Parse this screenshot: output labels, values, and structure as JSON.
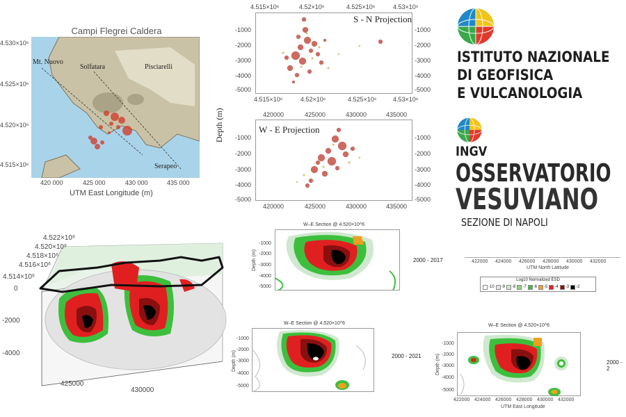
{
  "map": {
    "title": "Campi Flegrei Caldera",
    "xlabel": "UTM East Longitude (m)",
    "xticks": [
      "420 000",
      "425 000",
      "430 000",
      "435 000"
    ],
    "yticks": [
      "4.530×10⁶",
      "4.525×10⁶",
      "4.520×10⁶",
      "4.515×10⁶"
    ],
    "labels": {
      "mt_nuovo": "Mt. Nuovo",
      "solfatara": "Solfatara",
      "pisciarelli": "Pisciarelli",
      "serapeo": "Serapeo"
    }
  },
  "sn": {
    "title": "S - N Projection",
    "xticks": [
      "4.515×10⁶",
      "4.52×10⁶",
      "4.525×10⁶",
      "4.53×10⁶"
    ],
    "yticks": [
      "-1000",
      "-2000",
      "-3000",
      "-4000",
      "-5000"
    ]
  },
  "we": {
    "title": "W - E Projection",
    "xticks": [
      "420000",
      "425000",
      "430000",
      "435000"
    ],
    "yticks": [
      "-1000",
      "-2000",
      "-3000",
      "-4000",
      "-5000"
    ]
  },
  "depth_label": "Depth (m)",
  "logo": {
    "ingv_line1": "ISTITUTO NAZIONALE",
    "ingv_line2": "DI GEOFISICA",
    "ingv_line3": "E VULCANOLOGIA",
    "ov_line1": "INGV",
    "ov_line2": "OSSERVATORIO",
    "ov_line3": "VESUVIANO",
    "ov_line4": "SEZIONE DI NAPOLI"
  },
  "plot3d": {
    "yticks": [
      "4.522×10⁶",
      "4.520×10⁶",
      "4.518×10⁶",
      "4.516×10⁶",
      "4.514×10⁶"
    ],
    "zticks": [
      "0",
      "-2000",
      "-4000"
    ],
    "xticks": [
      "425000",
      "430000"
    ]
  },
  "sections": [
    {
      "title": "W–E Section @ 4.520×10^6",
      "period": "2000 - 2017"
    },
    {
      "title": "W–E Section @ 4.520×10^6",
      "period": "2000 - 2021"
    },
    {
      "title": "W–E Section @ 4.520×10^6",
      "period": "2000 - 2"
    }
  ],
  "section_axes": {
    "ylabel": "Depth (m)",
    "yticks": [
      "-1000",
      "-2000",
      "-3000",
      "-4000",
      "-5000"
    ],
    "xticks": [
      "422000",
      "424000",
      "426000",
      "428000",
      "430000",
      "432000"
    ],
    "xlabel": "UTM East Longitude"
  },
  "legend": {
    "axis_ticks": [
      "422000",
      "424000",
      "426000",
      "428000",
      "430000",
      "432000"
    ],
    "axis_label": "UTM North Latitude",
    "title": "Log10 Normalized ESD",
    "items": [
      {
        "label": "-10",
        "color": "#ffffff"
      },
      {
        "label": "-9",
        "color": "#e6e6e6"
      },
      {
        "label": "-8",
        "color": "#cfe8cf"
      },
      {
        "label": "-7",
        "color": "#8fd37d"
      },
      {
        "label": "-6",
        "color": "#3dbf3d"
      },
      {
        "label": "-5",
        "color": "#f0a020"
      },
      {
        "label": "-4",
        "color": "#e02020"
      },
      {
        "label": "-3",
        "color": "#8a1010"
      },
      {
        "label": "-2",
        "color": "#000000"
      }
    ]
  },
  "colors": {
    "sea": "#a9d3e8",
    "land": "#c9c2a6",
    "quake": "#c0392b",
    "contour_red": "#e02020",
    "contour_orange": "#f0a020",
    "contour_green": "#3dbf3d",
    "contour_light": "#cfe8cf"
  }
}
